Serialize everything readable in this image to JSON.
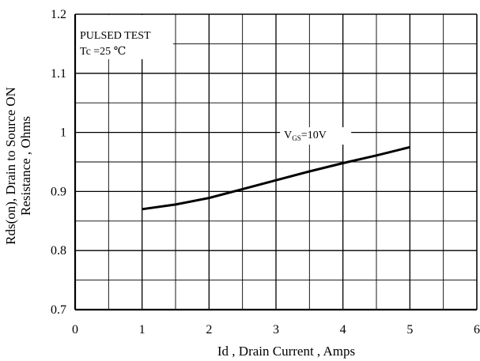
{
  "chart_data": {
    "type": "line",
    "xlabel": "Id , Drain Current , Amps",
    "ylabel_line1": "Rds(on), Drain to Source ON",
    "ylabel_line2": "Resistance , Ohms",
    "xlim": [
      0,
      6
    ],
    "ylim": [
      0.7,
      1.2
    ],
    "x_ticks": [
      0,
      1,
      2,
      3,
      4,
      5,
      6
    ],
    "x_tick_labels": [
      "0",
      "1",
      "2",
      "3",
      "4",
      "5",
      "6"
    ],
    "y_ticks": [
      0.7,
      0.8,
      0.9,
      1.0,
      1.1,
      1.2
    ],
    "y_tick_labels": [
      "0.7",
      "0.8",
      "0.9",
      "1",
      "1.1",
      "1.2"
    ],
    "x_minor_step": 0.5,
    "y_minor_step": 0.05,
    "grid": true,
    "annotation": {
      "line1": "PULSED    TEST",
      "line2": "Tc =25  ℃"
    },
    "series": [
      {
        "label_main": "V",
        "label_sub": "GS",
        "label_rest": "=10V",
        "x": [
          1.0,
          1.5,
          2.0,
          2.5,
          3.0,
          3.5,
          4.0,
          4.5,
          5.0
        ],
        "values": [
          0.87,
          0.878,
          0.889,
          0.904,
          0.919,
          0.934,
          0.948,
          0.961,
          0.975
        ]
      }
    ]
  }
}
